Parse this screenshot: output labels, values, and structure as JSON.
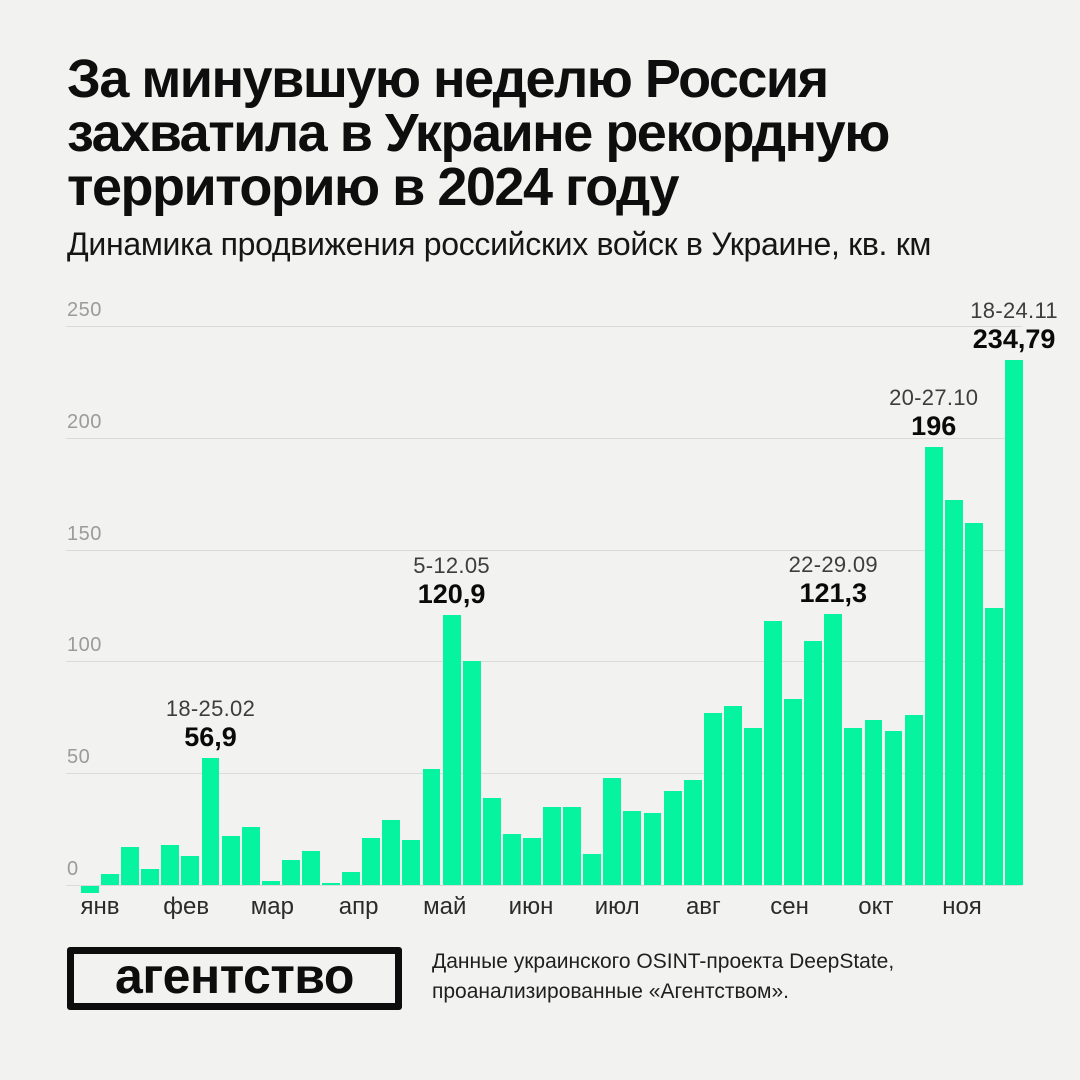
{
  "header": {
    "title_lines": [
      "За минувшую неделю Россия",
      "захватила в Украине рекордную",
      "территорию в 2024 году"
    ],
    "subtitle": "Динамика продвижения российских войск в Украине, кв. км"
  },
  "chart_data": {
    "type": "bar",
    "title": "Динамика продвижения российских войск в Украине, кв. км",
    "ylabel": "кв. км",
    "ylim": [
      0,
      250
    ],
    "y_ticks": [
      0,
      50,
      100,
      150,
      200,
      250
    ],
    "grid": "horizontal",
    "bar_color": "#06F3A0",
    "categories_months": [
      "янв",
      "фев",
      "мар",
      "апр",
      "май",
      "июн",
      "июл",
      "авг",
      "сен",
      "окт",
      "ноя"
    ],
    "values": [
      -3,
      5,
      17,
      7,
      18,
      13,
      56.9,
      22,
      26,
      2,
      11,
      15,
      1,
      6,
      21,
      29,
      20,
      52,
      120.9,
      100,
      39,
      23,
      21,
      35,
      35,
      14,
      48,
      33,
      32,
      42,
      47,
      77,
      80,
      70,
      118,
      83,
      109,
      121.3,
      70,
      74,
      69,
      76,
      196,
      172,
      162,
      124,
      234.79
    ],
    "annotations": [
      {
        "bar_index": 6,
        "date": "18-25.02",
        "value": "56,9"
      },
      {
        "bar_index": 18,
        "date": "5-12.05",
        "value": "120,9"
      },
      {
        "bar_index": 37,
        "date": "22-29.09",
        "value": "121,3"
      },
      {
        "bar_index": 42,
        "date": "20-27.10",
        "value": "196"
      },
      {
        "bar_index": 46,
        "date": "18-24.11",
        "value": "234,79"
      }
    ]
  },
  "footer": {
    "logo_text": "агентство",
    "source_lines": [
      "Данные украинского OSINT-проекта DeepState,",
      "проанализированные «Агентством»."
    ]
  }
}
